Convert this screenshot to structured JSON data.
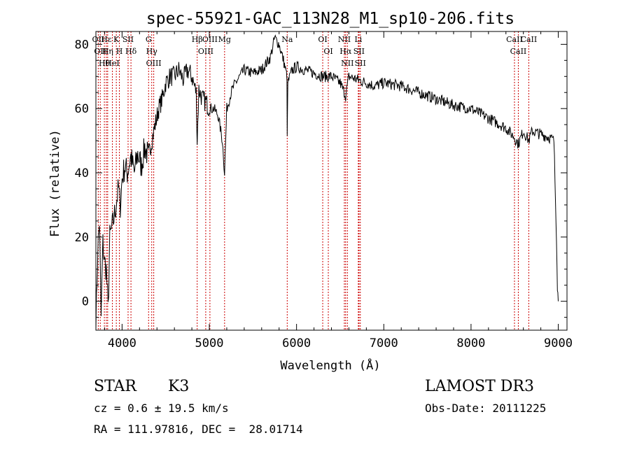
{
  "chart_data": {
    "type": "line",
    "title": "spec-55921-GAC_113N28_M1_sp10-206.fits",
    "xlabel": "Wavelength (Å)",
    "ylabel": "Flux (relative)",
    "xlim": [
      3700,
      9100
    ],
    "ylim": [
      -9,
      84
    ],
    "x_ticks": [
      4000,
      5000,
      6000,
      7000,
      8000,
      9000
    ],
    "y_ticks": [
      0,
      20,
      40,
      60,
      80
    ],
    "x_tick_labels": [
      "4000",
      "5000",
      "6000",
      "7000",
      "8000",
      "9000"
    ],
    "y_tick_labels": [
      "0",
      "20",
      "40",
      "60",
      "80"
    ],
    "series": [
      {
        "name": "flux",
        "x": [
          3700,
          3720,
          3740,
          3760,
          3780,
          3800,
          3820,
          3840,
          3860,
          3880,
          3900,
          3920,
          3940,
          3960,
          3980,
          4000,
          4030,
          4060,
          4100,
          4140,
          4180,
          4220,
          4260,
          4300,
          4340,
          4380,
          4420,
          4460,
          4500,
          4550,
          4600,
          4650,
          4700,
          4750,
          4800,
          4850,
          4861,
          4880,
          4920,
          4960,
          5000,
          5050,
          5100,
          5150,
          5175,
          5200,
          5250,
          5300,
          5400,
          5500,
          5600,
          5700,
          5750,
          5800,
          5850,
          5890,
          5893,
          5900,
          5950,
          6000,
          6100,
          6200,
          6300,
          6400,
          6500,
          6563,
          6600,
          6700,
          6800,
          6900,
          7000,
          7200,
          7400,
          7600,
          7800,
          8000,
          8200,
          8400,
          8498,
          8542,
          8600,
          8662,
          8700,
          8800,
          8900,
          8950,
          8980,
          8990,
          9000
        ],
        "y": [
          -9,
          15,
          25,
          -5,
          18,
          12,
          10,
          -3,
          20,
          22,
          25,
          28,
          32,
          35,
          30,
          38,
          42,
          40,
          45,
          40,
          46,
          42,
          48,
          45,
          50,
          55,
          60,
          63,
          68,
          70,
          70,
          72,
          69,
          72,
          70,
          65,
          50,
          66,
          63,
          62,
          60,
          60,
          58,
          50,
          40,
          60,
          65,
          68,
          72,
          71,
          72,
          76,
          82,
          80,
          75,
          70,
          50,
          68,
          72,
          73,
          72,
          71,
          70,
          70,
          68,
          64,
          70,
          69,
          68,
          67,
          68,
          67,
          65,
          63,
          61,
          60,
          57,
          54,
          51,
          49,
          53,
          50,
          53,
          52,
          51,
          50,
          20,
          5,
          0
        ]
      }
    ],
    "line_markers": [
      {
        "wavelength": 3727,
        "labels": [
          "OII"
        ]
      },
      {
        "wavelength": 3750,
        "labels": [
          "OII"
        ]
      },
      {
        "wavelength": 3797,
        "labels": [
          "Hθ"
        ]
      },
      {
        "wavelength": 3820,
        "labels": [
          "Hε"
        ]
      },
      {
        "wavelength": 3835,
        "labels": [
          "Hη"
        ]
      },
      {
        "wavelength": 3889,
        "labels": [
          "HeI"
        ]
      },
      {
        "wavelength": 3934,
        "labels": [
          "K"
        ]
      },
      {
        "wavelength": 3969,
        "labels": [
          "H"
        ]
      },
      {
        "wavelength": 4069,
        "labels": [
          "SII"
        ]
      },
      {
        "wavelength": 4102,
        "labels": [
          "Hδ"
        ]
      },
      {
        "wavelength": 4304,
        "labels": [
          "G"
        ]
      },
      {
        "wavelength": 4340,
        "labels": [
          "Hγ"
        ]
      },
      {
        "wavelength": 4363,
        "labels": [
          "OIII"
        ]
      },
      {
        "wavelength": 4861,
        "labels": [
          "Hβ"
        ]
      },
      {
        "wavelength": 4959,
        "labels": [
          "OIII"
        ]
      },
      {
        "wavelength": 5007,
        "labels": [
          "OIII"
        ]
      },
      {
        "wavelength": 5175,
        "labels": [
          "Mg"
        ]
      },
      {
        "wavelength": 5893,
        "labels": [
          "Na"
        ]
      },
      {
        "wavelength": 6300,
        "labels": [
          "OI"
        ]
      },
      {
        "wavelength": 6364,
        "labels": [
          "OI"
        ]
      },
      {
        "wavelength": 6548,
        "labels": [
          "NII"
        ]
      },
      {
        "wavelength": 6563,
        "labels": [
          "Hα"
        ]
      },
      {
        "wavelength": 6583,
        "labels": [
          "NII"
        ]
      },
      {
        "wavelength": 6708,
        "labels": [
          "Li"
        ]
      },
      {
        "wavelength": 6716,
        "labels": [
          "SII"
        ]
      },
      {
        "wavelength": 6731,
        "labels": [
          "SII"
        ]
      },
      {
        "wavelength": 8498,
        "labels": [
          "CaII"
        ]
      },
      {
        "wavelength": 8542,
        "labels": [
          "CaII"
        ]
      },
      {
        "wavelength": 8662,
        "labels": [
          "CaII"
        ]
      }
    ],
    "marker_color": "#cc0000",
    "line_color": "#000000"
  },
  "info": {
    "class": "STAR",
    "subclass": "K3",
    "survey": "LAMOST DR3",
    "cz": "cz = 0.6 ± 19.5 km/s",
    "obs_date": "Obs-Date: 20111225",
    "radec": "RA = 111.97816, DEC =  28.01714"
  }
}
